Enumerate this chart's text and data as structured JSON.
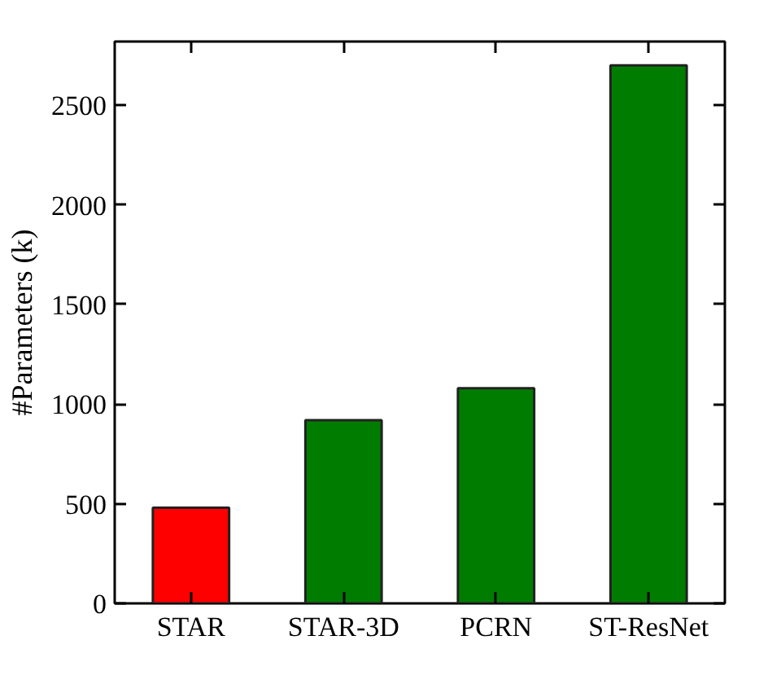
{
  "chart_data": {
    "type": "bar",
    "ylabel": "#Parameters (k)",
    "categories": [
      "STAR",
      "STAR-3D",
      "PCRN",
      "ST-ResNet"
    ],
    "values": [
      480,
      920,
      1080,
      2700
    ],
    "colors": [
      "#ff0000",
      "#007c00",
      "#007c00",
      "#007c00"
    ],
    "ylim": [
      0,
      2820
    ],
    "yticks": [
      0,
      500,
      1000,
      1500,
      2000,
      2500
    ],
    "grid": false
  }
}
